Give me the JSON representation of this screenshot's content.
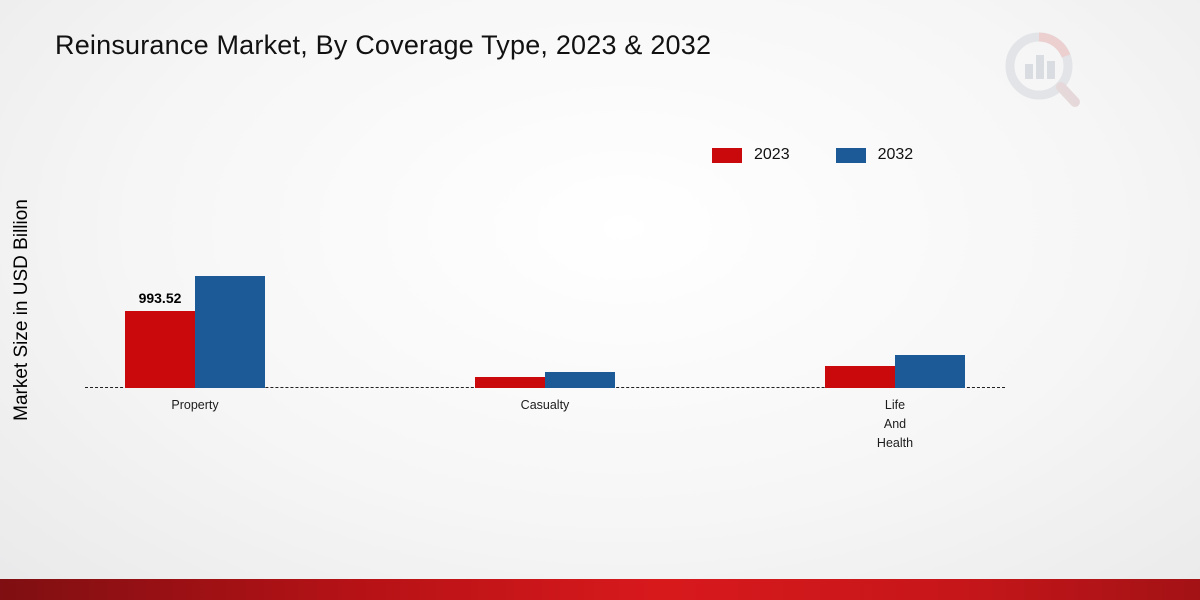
{
  "title": "Reinsurance Market, By Coverage Type, 2023 & 2032",
  "y_axis_label": "Market Size in USD Billion",
  "legend": [
    {
      "label": "2023",
      "color": "#c9090c"
    },
    {
      "label": "2032",
      "color": "#1b5a96"
    }
  ],
  "chart_data": {
    "type": "bar",
    "categories": [
      "Property",
      "Casualty",
      "Life\nAnd\nHealth"
    ],
    "series": [
      {
        "name": "2023",
        "color": "#c9090c",
        "values": [
          993.52,
          140,
          280
        ],
        "labels": [
          "993.52",
          "",
          ""
        ]
      },
      {
        "name": "2032",
        "color": "#1b5a96",
        "values": [
          1450,
          210,
          420
        ],
        "labels": [
          "",
          "",
          ""
        ]
      }
    ],
    "xlabel": "",
    "ylabel": "Market Size in USD Billion",
    "baseline": 0,
    "grid": false,
    "legend_position": "top-right"
  },
  "colors": {
    "series_2023": "#c9090c",
    "series_2032": "#1b5a96",
    "bottom_strip": "#c6161a"
  }
}
